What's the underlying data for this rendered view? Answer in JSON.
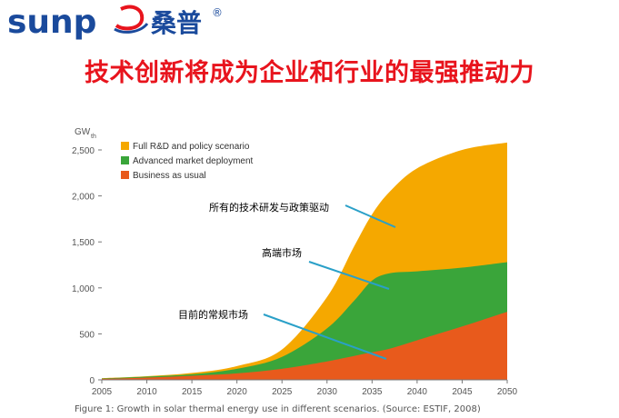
{
  "header": {
    "brand_latin": "sunp",
    "brand_cn": "桑普",
    "registered_mark": "®",
    "colors": {
      "brand_blue": "#1a4a9c",
      "brand_red": "#e8141d"
    }
  },
  "title": "技术创新将成为企业和行业的最强推动力",
  "caption": "Figure 1: Growth in solar thermal energy use in different scenarios. (Source: ESTIF, 2008)",
  "chart_data": {
    "type": "area",
    "stacked": true,
    "ylabel": "GWth",
    "ylabel_main": "GW",
    "ylabel_sub": "th",
    "x": [
      2005,
      2010,
      2015,
      2020,
      2025,
      2030,
      2033,
      2035,
      2037,
      2040,
      2045,
      2050
    ],
    "xticks": [
      "2005",
      "2010",
      "2015",
      "2020",
      "2025",
      "2030",
      "2035",
      "2040",
      "2045",
      "2050"
    ],
    "yticks": [
      "0",
      "500",
      "1,000",
      "1,500",
      "2,000",
      "2,500"
    ],
    "ylim": [
      0,
      2600
    ],
    "xlim": [
      2005,
      2050
    ],
    "grid": false,
    "legend_position": "top-left",
    "series": [
      {
        "name": "Business as usual",
        "color": "#e85a1c",
        "cumulative": [
          10,
          25,
          45,
          70,
          120,
          200,
          260,
          300,
          340,
          430,
          580,
          740
        ]
      },
      {
        "name": "Advanced market deployment",
        "color": "#3aa53a",
        "cumulative": [
          15,
          35,
          60,
          120,
          250,
          560,
          860,
          1080,
          1160,
          1180,
          1220,
          1280
        ]
      },
      {
        "name": "Full R&D and policy scenario",
        "color": "#f5a800",
        "cumulative": [
          18,
          40,
          75,
          150,
          330,
          900,
          1450,
          1800,
          2050,
          2300,
          2500,
          2580
        ]
      }
    ],
    "legend": [
      "Full R&D and policy scenario",
      "Advanced market deployment",
      "Business as usual"
    ],
    "annotations": [
      {
        "label": "所有的技术研发与政策驱动",
        "x": 2040,
        "y": 1720
      },
      {
        "label": "高端市场",
        "x": 2037,
        "y": 1000
      },
      {
        "label": "目前的常规市场",
        "x": 2030,
        "y": 470
      }
    ]
  }
}
